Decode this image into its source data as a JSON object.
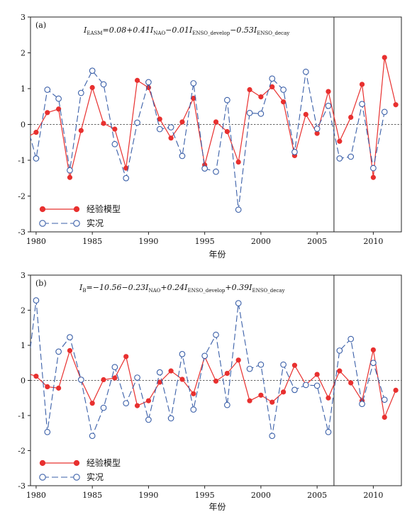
{
  "chart_data": [
    {
      "type": "line",
      "panel_label": "(a)",
      "formula": {
        "prefix": "I",
        "prefix_sub": "EASM",
        "terms": [
          {
            "text": "=0.08+0.41I",
            "sub": "NAO"
          },
          {
            "text": "−0.01I",
            "sub": "ENSO_develop"
          },
          {
            "text": "−0.53I",
            "sub": "ENSO_decay"
          }
        ]
      },
      "xlabel": "年份",
      "ylabel": "",
      "xlim": [
        1979.5,
        2012.5
      ],
      "ylim": [
        -3,
        3
      ],
      "xticks": [
        "1980",
        "1985",
        "1990",
        "1995",
        "2000",
        "2005",
        "2010"
      ],
      "yticks": [
        "-3",
        "-2",
        "-1",
        "0",
        "1",
        "2",
        "3"
      ],
      "vline_year": 2006.5,
      "legend_position": "bottom-left",
      "x": [
        1979,
        1980,
        1981,
        1982,
        1983,
        1984,
        1985,
        1986,
        1987,
        1988,
        1989,
        1990,
        1991,
        1992,
        1993,
        1994,
        1995,
        1996,
        1997,
        1998,
        1999,
        2000,
        2001,
        2002,
        2003,
        2004,
        2005,
        2006,
        2007,
        2008,
        2009,
        2010,
        2011,
        2012
      ],
      "series": [
        {
          "name": "经验模型",
          "style": "model",
          "color": "#e8302f",
          "values": [
            -0.38,
            -0.22,
            0.33,
            0.43,
            -1.48,
            -0.17,
            1.03,
            0.03,
            -0.13,
            -1.22,
            1.23,
            1.03,
            0.15,
            -0.38,
            0.07,
            0.73,
            -1.13,
            0.07,
            -0.2,
            -1.05,
            0.97,
            0.77,
            1.05,
            0.63,
            -0.87,
            0.28,
            -0.25,
            0.92,
            -0.47,
            0.2,
            1.12,
            -1.48,
            1.87,
            0.55
          ]
        },
        {
          "name": "实况",
          "style": "obs",
          "color": "#3a5fa8",
          "values": [
            0.22,
            -0.95,
            0.97,
            0.72,
            -1.28,
            0.88,
            1.5,
            1.12,
            -0.55,
            -1.5,
            0.05,
            1.18,
            -0.13,
            -0.08,
            -0.88,
            1.15,
            -1.23,
            -1.32,
            0.68,
            -2.38,
            0.32,
            0.3,
            1.28,
            0.97,
            -0.77,
            1.47,
            -0.12,
            0.52,
            -0.95,
            -0.9,
            0.57,
            -1.22,
            0.35,
            null
          ]
        }
      ]
    },
    {
      "type": "line",
      "panel_label": "(b)",
      "formula": {
        "prefix": "I",
        "prefix_sub": "B",
        "terms": [
          {
            "text": "=−10.56−0.23I",
            "sub": "NAO"
          },
          {
            "text": "+0.24I",
            "sub": "ENSO_develop"
          },
          {
            "text": "+0.39I",
            "sub": "ENSO_decay"
          }
        ]
      },
      "xlabel": "年份",
      "ylabel": "",
      "xlim": [
        1979.5,
        2012.5
      ],
      "ylim": [
        -3,
        3
      ],
      "xticks": [
        "1980",
        "1985",
        "1990",
        "1995",
        "2000",
        "2005",
        "2010"
      ],
      "yticks": [
        "-3",
        "-2",
        "-1",
        "0",
        "1",
        "2",
        "3"
      ],
      "vline_year": 2006.5,
      "legend_position": "bottom-left",
      "x": [
        1979,
        1980,
        1981,
        1982,
        1983,
        1984,
        1985,
        1986,
        1987,
        1988,
        1989,
        1990,
        1991,
        1992,
        1993,
        1994,
        1995,
        1996,
        1997,
        1998,
        1999,
        2000,
        2001,
        2002,
        2003,
        2004,
        2005,
        2006,
        2007,
        2008,
        2009,
        2010,
        2011,
        2012
      ],
      "series": [
        {
          "name": "经验模型",
          "style": "model",
          "color": "#e8302f",
          "values": [
            0.22,
            0.12,
            -0.18,
            -0.22,
            0.85,
            0.02,
            -0.65,
            0.02,
            0.07,
            0.68,
            -0.72,
            -0.58,
            -0.05,
            0.27,
            0.03,
            -0.38,
            0.68,
            -0.02,
            0.2,
            0.58,
            -0.58,
            -0.42,
            -0.62,
            -0.33,
            0.43,
            -0.12,
            0.17,
            -0.5,
            0.27,
            -0.07,
            -0.58,
            0.87,
            -1.05,
            -0.28
          ]
        },
        {
          "name": "实况",
          "style": "obs",
          "color": "#3a5fa8",
          "values": [
            -0.38,
            2.28,
            -1.47,
            0.82,
            1.23,
            0.02,
            -1.58,
            -0.78,
            0.38,
            -0.65,
            0.08,
            -1.12,
            0.23,
            -1.08,
            0.75,
            -0.83,
            0.7,
            1.3,
            -0.7,
            2.2,
            0.33,
            0.45,
            -1.58,
            0.45,
            -0.27,
            -0.13,
            -0.15,
            -1.47,
            0.85,
            1.18,
            -0.67,
            0.5,
            -0.55,
            null
          ]
        }
      ]
    }
  ]
}
